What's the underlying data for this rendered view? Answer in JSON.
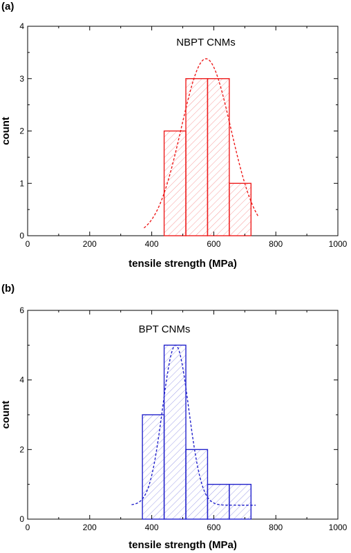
{
  "chart_data": [
    {
      "type": "bar",
      "panel_label": "(a)",
      "annotation": "NBPT CNMs",
      "xlabel": "tensile strength (MPa)",
      "ylabel": "count",
      "xlim": [
        0,
        1000
      ],
      "ylim": [
        0,
        4
      ],
      "xticks": [
        "0",
        "200",
        "400",
        "600",
        "800",
        "1000"
      ],
      "yticks": [
        "0",
        "1",
        "2",
        "3",
        "4"
      ],
      "color": "#ee1c1c",
      "bins": [
        {
          "start": 440,
          "end": 510,
          "count": 2
        },
        {
          "start": 510,
          "end": 580,
          "count": 3
        },
        {
          "start": 580,
          "end": 650,
          "count": 3
        },
        {
          "start": 650,
          "end": 720,
          "count": 1
        }
      ],
      "fit": {
        "kind": "gaussian",
        "center": 575,
        "sigma": 80,
        "amplitude": 3.38,
        "baseline": 0,
        "x_range": [
          375,
          745
        ]
      }
    },
    {
      "type": "bar",
      "panel_label": "(b)",
      "annotation": "BPT CNMs",
      "xlabel": "tensile strength (MPa)",
      "ylabel": "count",
      "xlim": [
        0,
        1000
      ],
      "ylim": [
        0,
        6
      ],
      "xticks": [
        "0",
        "200",
        "400",
        "600",
        "800",
        "1000"
      ],
      "yticks": [
        "0",
        "2",
        "4",
        "6"
      ],
      "color": "#2222cc",
      "bins": [
        {
          "start": 370,
          "end": 440,
          "count": 3
        },
        {
          "start": 440,
          "end": 510,
          "count": 5
        },
        {
          "start": 510,
          "end": 580,
          "count": 2
        },
        {
          "start": 580,
          "end": 650,
          "count": 1
        },
        {
          "start": 650,
          "end": 720,
          "count": 1
        }
      ],
      "fit": {
        "kind": "gaussian",
        "center": 477,
        "sigma": 42,
        "amplitude": 4.6,
        "baseline": 0.4,
        "x_range": [
          335,
          735
        ]
      }
    }
  ]
}
